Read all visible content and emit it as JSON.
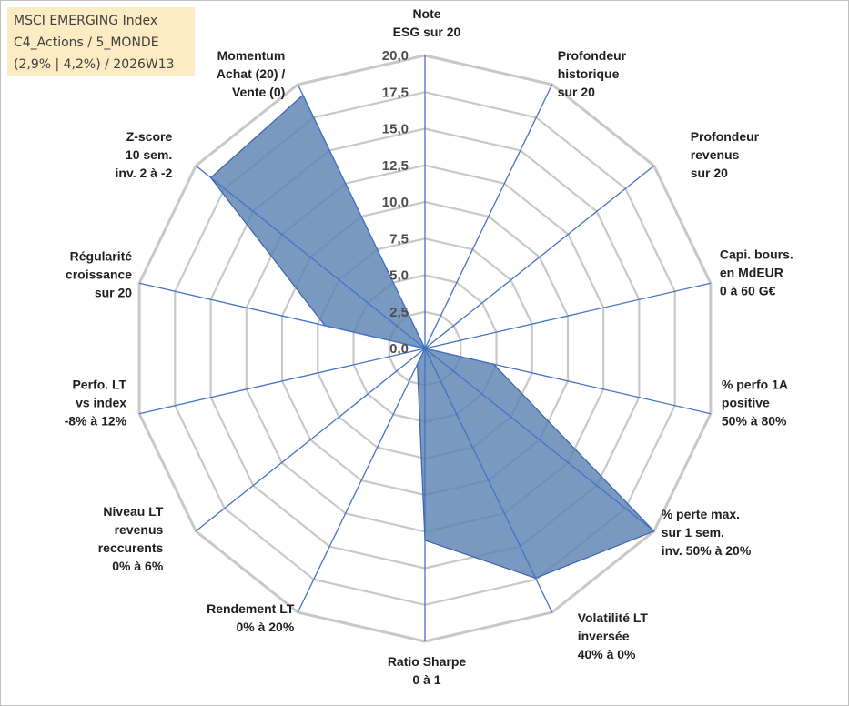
{
  "header": {
    "line1": "MSCI EMERGING Index",
    "line2": "C4_Actions / 5_MONDE",
    "line3": "(2,9% | 4,2%) / 2026W13"
  },
  "colors": {
    "background": "#ffffff",
    "header_bg": "#fdebc4",
    "grid": "#c8c8c8",
    "spoke": "#4472c4",
    "area_fill": "#5b82b3",
    "area_stroke": "#3a64a8"
  },
  "chart_data": {
    "type": "radar",
    "title": "",
    "rmin": 0,
    "rmax": 20,
    "ticks": [
      0,
      2.5,
      5,
      7.5,
      10,
      12.5,
      15,
      17.5,
      20
    ],
    "tick_labels": [
      "0,0",
      "2,5",
      "5,0",
      "7,5",
      "10,0",
      "12,5",
      "15,0",
      "17,5",
      "20,0"
    ],
    "axes": [
      {
        "label": [
          "Note",
          "ESG sur 20"
        ],
        "value": 0
      },
      {
        "label": [
          "Profondeur",
          "historique",
          "sur 20"
        ],
        "value": 0
      },
      {
        "label": [
          "Profondeur",
          "revenus",
          "sur 20"
        ],
        "value": 0
      },
      {
        "label": [
          "Capi. bours.",
          "en MdEUR",
          "0 à 60 G€"
        ],
        "value": 0
      },
      {
        "label": [
          "% perfo 1A",
          "positive",
          "50% à 80%"
        ],
        "value": 4.8
      },
      {
        "label": [
          "% perte max.",
          "sur 1 sem.",
          "inv. 50% à 20%"
        ],
        "value": 20
      },
      {
        "label": [
          "Volatilité LT",
          "inversée",
          "40% à 0%"
        ],
        "value": 17.4
      },
      {
        "label": [
          "Ratio Sharpe",
          "0 à 1"
        ],
        "value": 13.1
      },
      {
        "label": [
          "Rendement LT",
          "0% à 20%"
        ],
        "value": 1.2
      },
      {
        "label": [
          "Niveau LT",
          "revenus",
          "reccurents",
          "0% à 6%"
        ],
        "value": 0
      },
      {
        "label": [
          "Perfo. LT",
          "vs index",
          "-8% à 12%"
        ],
        "value": 0
      },
      {
        "label": [
          "Régularité",
          "croissance",
          "sur 20"
        ],
        "value": 7
      },
      {
        "label": [
          "Z-score",
          "10 sem.",
          "inv. 2 à -2"
        ],
        "value": 18.7
      },
      {
        "label": [
          "Momentum",
          "Achat (20) /",
          "Vente (0)"
        ],
        "value": 19.2
      }
    ]
  }
}
